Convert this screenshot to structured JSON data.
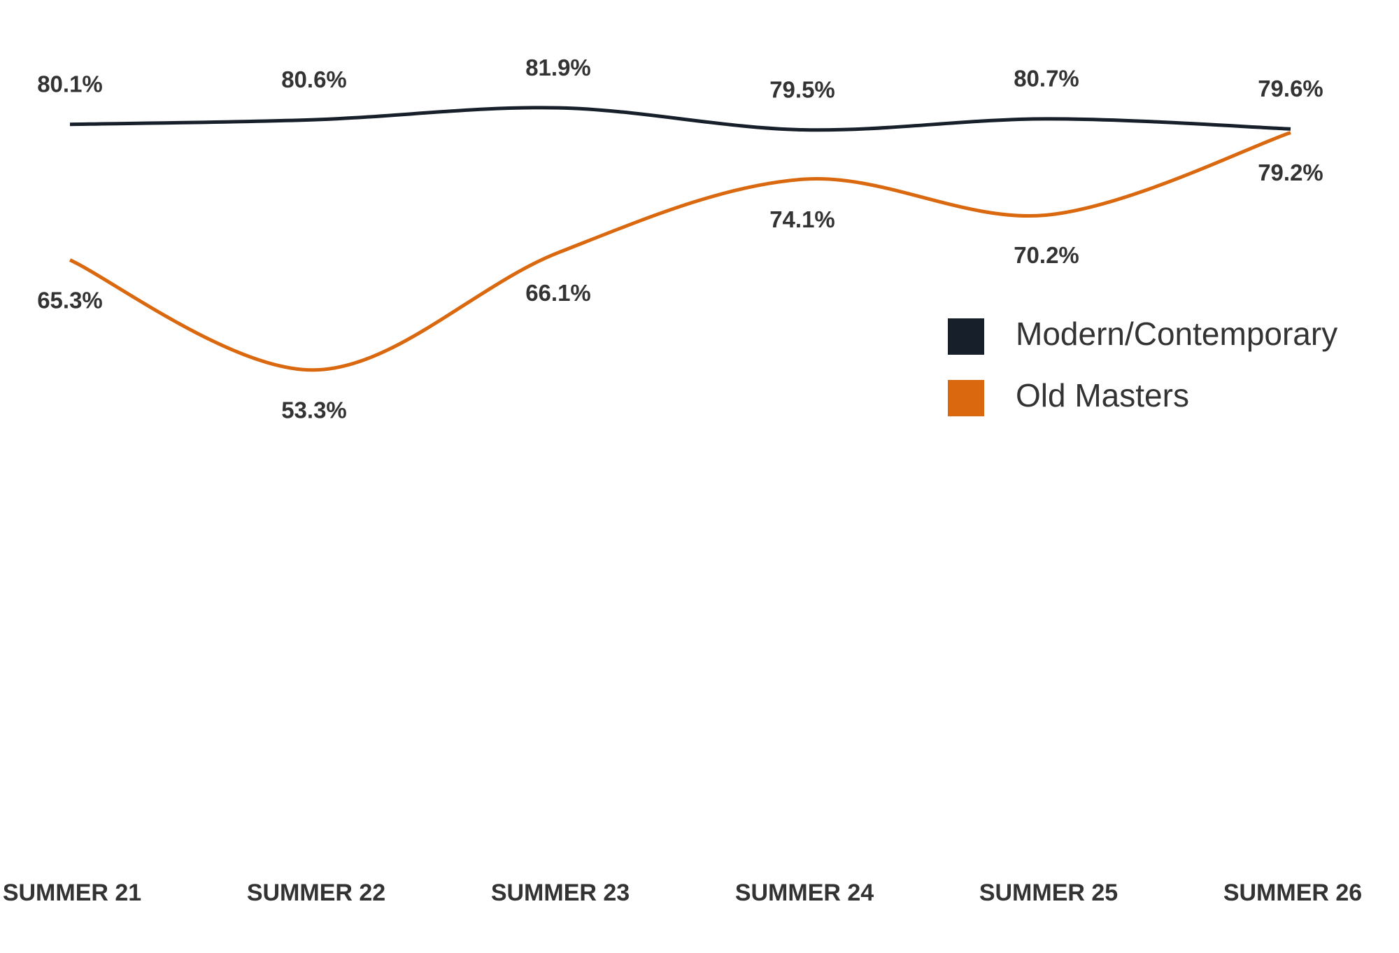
{
  "chart_data": {
    "type": "line",
    "categories": [
      "SUMMER 21",
      "SUMMER 22",
      "SUMMER 23",
      "SUMMER 24",
      "SUMMER 25",
      "SUMMER 26"
    ],
    "series": [
      {
        "name": "Modern/Contemporary",
        "color": "#17202a",
        "values": [
          80.1,
          80.6,
          81.9,
          79.5,
          80.7,
          79.6
        ],
        "value_labels": [
          "80.1%",
          "80.6%",
          "81.9%",
          "79.5%",
          "80.7%",
          "79.6%"
        ]
      },
      {
        "name": "Old Masters",
        "color": "#d9680f",
        "values": [
          65.3,
          53.3,
          66.1,
          74.1,
          70.2,
          79.2
        ],
        "value_labels": [
          "65.3%",
          "53.3%",
          "66.1%",
          "74.1%",
          "70.2%",
          "79.2%"
        ]
      }
    ],
    "ylim": [
      0,
      90
    ],
    "legend": "right"
  }
}
